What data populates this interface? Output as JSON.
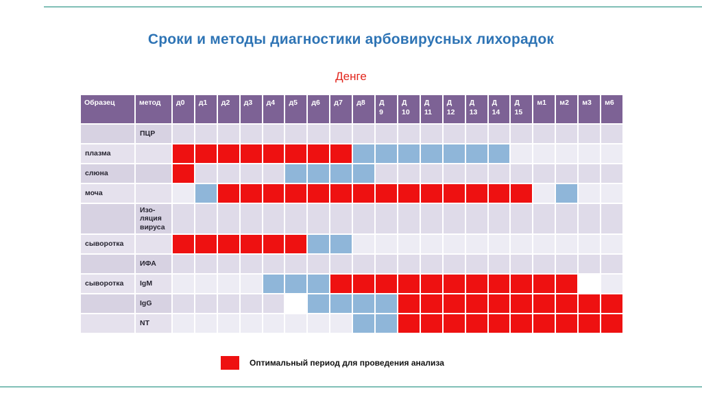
{
  "slide": {
    "title": "Сроки и методы диагностики арбовирусных лихорадок",
    "subtitle": "Денге",
    "legend_label": "Оптимальный период для проведения анализа"
  },
  "colors": {
    "optimal_red": "#ee1111",
    "possible_blue": "#8fb6d9",
    "header_purple": "#7d6295",
    "row_mid": "#dfdbe9",
    "row_light": "#edecf4",
    "label_mid": "#d7d2e2",
    "label_light": "#e5e1ed",
    "title_blue": "#2e74b5",
    "subtitle_red": "#e2241b",
    "frame_teal": "#7fbfb6"
  },
  "chart_data": {
    "type": "heatmap",
    "title": "Денге",
    "legend": {
      "red": "Оптимальный период для проведения анализа"
    },
    "columns": [
      "Образец",
      "метод",
      "д0",
      "д1",
      "д2",
      "д3",
      "д4",
      "д5",
      "д6",
      "д7",
      "д8",
      "Д\n9",
      "Д\n10",
      "Д\n11",
      "Д\n12",
      "Д\n13",
      "Д\n14",
      "Д\n15",
      "м1",
      "м2",
      "м3",
      "м6"
    ],
    "time_points": [
      "д0",
      "д1",
      "д2",
      "д3",
      "д4",
      "д5",
      "д6",
      "д7",
      "д8",
      "Д9",
      "Д10",
      "Д11",
      "Д12",
      "Д13",
      "Д14",
      "Д15",
      "м1",
      "м2",
      "м3",
      "м6"
    ],
    "rows": [
      {
        "sample": "",
        "method": "ПЦР",
        "red": [],
        "blue": [],
        "white": []
      },
      {
        "sample": "плазма",
        "method": "",
        "red": [
          0,
          1,
          2,
          3,
          4,
          5,
          6,
          7
        ],
        "blue": [
          8,
          9,
          10,
          11,
          12,
          13,
          14
        ],
        "white": []
      },
      {
        "sample": "слюна",
        "method": "",
        "red": [
          0
        ],
        "blue": [
          5,
          6,
          7,
          8
        ],
        "white": []
      },
      {
        "sample": "моча",
        "method": "",
        "red": [
          2,
          3,
          4,
          5,
          6,
          7,
          8,
          9,
          10,
          11,
          12,
          13,
          14,
          15
        ],
        "blue": [
          1,
          17
        ],
        "white": []
      },
      {
        "sample": "",
        "method": "Изо-\nляция\nвируса",
        "red": [],
        "blue": [],
        "white": []
      },
      {
        "sample": "сыворотка",
        "method": "",
        "red": [
          0,
          1,
          2,
          3,
          4,
          5
        ],
        "blue": [
          6,
          7
        ],
        "white": []
      },
      {
        "sample": "",
        "method": "ИФА",
        "red": [],
        "blue": [],
        "white": []
      },
      {
        "sample": "сыворотка",
        "method": "IgM",
        "red": [
          7,
          8,
          9,
          10,
          11,
          12,
          13,
          14,
          15,
          16,
          17
        ],
        "blue": [
          4,
          5,
          6
        ],
        "white": [
          18
        ]
      },
      {
        "sample": "",
        "method": "IgG",
        "red": [
          10,
          11,
          12,
          13,
          14,
          15,
          16,
          17,
          18,
          19
        ],
        "blue": [
          6,
          7,
          8,
          9
        ],
        "white": [
          5
        ]
      },
      {
        "sample": "",
        "method": "NT",
        "red": [
          10,
          11,
          12,
          13,
          14,
          15,
          16,
          17,
          18,
          19
        ],
        "blue": [
          8,
          9
        ],
        "white": []
      }
    ]
  }
}
